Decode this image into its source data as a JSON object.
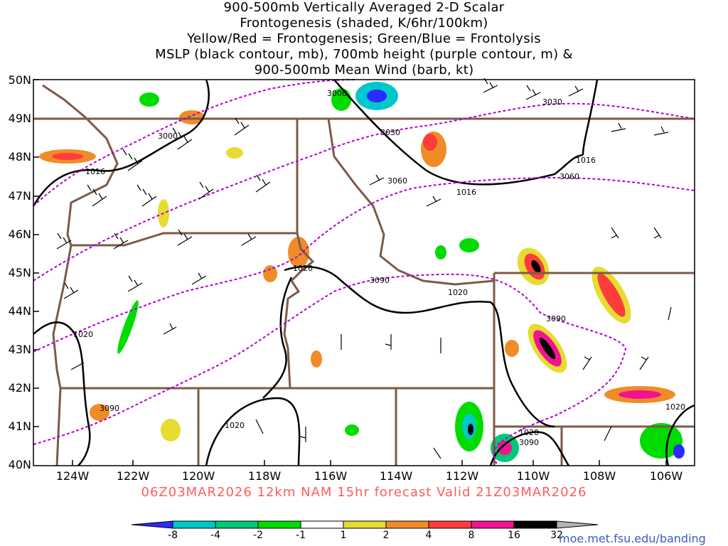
{
  "title": {
    "line1": "900-500mb Vertically Averaged 2-D Scalar",
    "line2": "Frontogenesis (shaded, K/6hr/100km)",
    "line3": "Yellow/Red = Frontogenesis;  Green/Blue = Frontolysis",
    "line4": "MSLP (black contour, mb), 700mb height (purple contour, m) &",
    "line5": "900-500mb Mean Wind (barb, kt)"
  },
  "axes": {
    "lat_labels": [
      "50N",
      "49N",
      "48N",
      "47N",
      "46N",
      "45N",
      "44N",
      "43N",
      "42N",
      "41N",
      "40N"
    ],
    "lon_labels": [
      "124W",
      "122W",
      "120W",
      "118W",
      "116W",
      "114W",
      "112W",
      "110W",
      "108W",
      "106W"
    ]
  },
  "contour_labels": {
    "height": [
      "3000",
      "3000",
      "3030",
      "3030",
      "3060",
      "3060",
      "3090",
      "3090",
      "3090",
      "3090"
    ],
    "mslp": [
      "1016",
      "1016",
      "1016",
      "1020",
      "1020",
      "1020",
      "1020",
      "1020",
      "1020"
    ]
  },
  "footer": "06Z03MAR2026 12km NAM 15hr forecast Valid 21Z03MAR2026",
  "colorbar": {
    "ticks": [
      "-8",
      "-4",
      "-2",
      "-1",
      "1",
      "2",
      "4",
      "8",
      "16",
      "32"
    ],
    "colors": [
      "#2b2bff",
      "#00c8c8",
      "#00c878",
      "#00dc00",
      "#ffffff",
      "#e6dc32",
      "#f08c28",
      "#ff3c3c",
      "#f01490",
      "#000000",
      "#b4b4b4"
    ]
  },
  "credit": "moe.met.fsu.edu/banding",
  "colors": {
    "height_contour": "#b400d2",
    "mslp_contour": "#000000",
    "state_border": "#7d5a46"
  }
}
